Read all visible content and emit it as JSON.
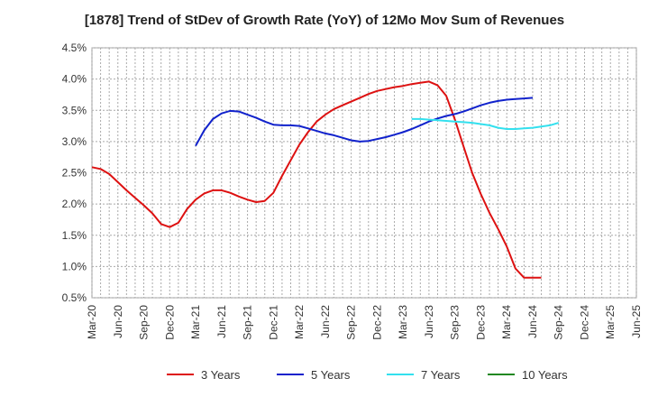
{
  "chart_data": {
    "type": "line",
    "title": "[1878]  Trend of StDev of Growth Rate (YoY) of 12Mo Mov Sum of Revenues",
    "xlabel": "",
    "ylabel": "",
    "ylim": [
      0.5,
      4.5
    ],
    "yticks": [
      "0.5%",
      "1.0%",
      "1.5%",
      "2.0%",
      "2.5%",
      "3.0%",
      "3.5%",
      "4.0%",
      "4.5%"
    ],
    "ytick_values": [
      0.5,
      1.0,
      1.5,
      2.0,
      2.5,
      3.0,
      3.5,
      4.0,
      4.5
    ],
    "xticks": [
      "Mar-20",
      "Jun-20",
      "Sep-20",
      "Dec-20",
      "Mar-21",
      "Jun-21",
      "Sep-21",
      "Dec-21",
      "Mar-22",
      "Jun-22",
      "Sep-22",
      "Dec-22",
      "Mar-23",
      "Jun-23",
      "Sep-23",
      "Dec-23",
      "Mar-24",
      "Jun-24",
      "Sep-24",
      "Dec-24",
      "Mar-25",
      "Jun-25"
    ],
    "grid": true,
    "legend_position": "bottom",
    "series": [
      {
        "name": "3 Years",
        "color": "#dd1111",
        "start_index": 0,
        "values": [
          2.59,
          2.56,
          2.48,
          2.35,
          2.22,
          2.1,
          1.98,
          1.85,
          1.68,
          1.63,
          1.7,
          1.92,
          2.07,
          2.17,
          2.22,
          2.22,
          2.18,
          2.12,
          2.07,
          2.03,
          2.05,
          2.18,
          2.45,
          2.7,
          2.95,
          3.15,
          3.32,
          3.43,
          3.52,
          3.58,
          3.64,
          3.7,
          3.76,
          3.81,
          3.84,
          3.87,
          3.89,
          3.92,
          3.94,
          3.96,
          3.9,
          3.73,
          3.35,
          2.92,
          2.5,
          2.16,
          1.86,
          1.6,
          1.32,
          0.97,
          0.82,
          0.82,
          0.82
        ]
      },
      {
        "name": "5 Years",
        "color": "#1122cc",
        "start_index": 12,
        "values": [
          2.93,
          3.18,
          3.36,
          3.45,
          3.49,
          3.48,
          3.43,
          3.38,
          3.32,
          3.27,
          3.26,
          3.26,
          3.25,
          3.21,
          3.17,
          3.13,
          3.1,
          3.06,
          3.02,
          3.0,
          3.01,
          3.04,
          3.07,
          3.11,
          3.15,
          3.2,
          3.26,
          3.32,
          3.37,
          3.41,
          3.44,
          3.48,
          3.53,
          3.58,
          3.62,
          3.65,
          3.67,
          3.68,
          3.69,
          3.7
        ]
      },
      {
        "name": "7 Years",
        "color": "#33e0ee",
        "start_index": 37,
        "values": [
          3.36,
          3.36,
          3.35,
          3.34,
          3.33,
          3.32,
          3.31,
          3.3,
          3.28,
          3.26,
          3.22,
          3.2,
          3.2,
          3.21,
          3.22,
          3.24,
          3.26,
          3.3
        ]
      },
      {
        "name": "10 Years",
        "color": "#228822",
        "start_index": 0,
        "values": []
      }
    ]
  }
}
